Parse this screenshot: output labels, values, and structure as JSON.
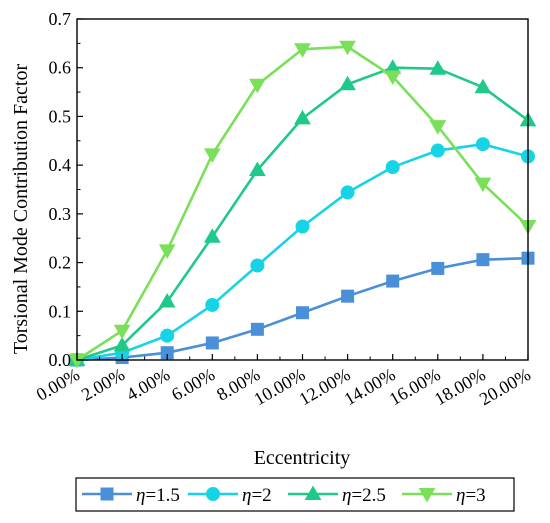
{
  "chart_data": {
    "type": "line",
    "xlabel": "Eccentricity",
    "ylabel": "Torsional Mode Contribution Factor",
    "x": [
      0,
      2,
      4,
      6,
      8,
      10,
      12,
      14,
      16,
      18,
      20
    ],
    "x_tick_labels": [
      "0.00%",
      "2.00%",
      "4.00%",
      "6.00%",
      "8.00%",
      "10.00%",
      "12.00%",
      "14.00%",
      "16.00%",
      "18.00%",
      "20.00%"
    ],
    "xlim": [
      0,
      20
    ],
    "ylim": [
      0,
      0.7
    ],
    "y_ticks": [
      0.0,
      0.1,
      0.2,
      0.3,
      0.4,
      0.5,
      0.6,
      0.7
    ],
    "y_tick_labels": [
      "0.0",
      "0.1",
      "0.2",
      "0.3",
      "0.4",
      "0.5",
      "0.6",
      "0.7"
    ],
    "grid": false,
    "legend_position": "bottom",
    "series": [
      {
        "name": "η=1.5",
        "legend_symbol": "η",
        "legend_value": "=1.5",
        "marker": "square",
        "color": "#4a90d9",
        "values": [
          0.0,
          0.005,
          0.015,
          0.035,
          0.063,
          0.097,
          0.131,
          0.162,
          0.188,
          0.206,
          0.209
        ]
      },
      {
        "name": "η=2",
        "legend_symbol": "η",
        "legend_value": "=2",
        "marker": "circle",
        "color": "#16d4e6",
        "values": [
          0.0,
          0.015,
          0.05,
          0.113,
          0.194,
          0.274,
          0.344,
          0.396,
          0.43,
          0.443,
          0.418
        ]
      },
      {
        "name": "η=2.5",
        "legend_symbol": "η",
        "legend_value": "=2.5",
        "marker": "triangle-up",
        "color": "#1fc98a",
        "values": [
          0.0,
          0.03,
          0.12,
          0.253,
          0.39,
          0.496,
          0.566,
          0.6,
          0.598,
          0.56,
          0.492
        ]
      },
      {
        "name": "η=3",
        "legend_symbol": "η",
        "legend_value": "=3",
        "marker": "triangle-down",
        "color": "#7ae05a",
        "values": [
          0.0,
          0.06,
          0.225,
          0.422,
          0.565,
          0.638,
          0.643,
          0.582,
          0.48,
          0.362,
          0.275
        ]
      }
    ]
  }
}
